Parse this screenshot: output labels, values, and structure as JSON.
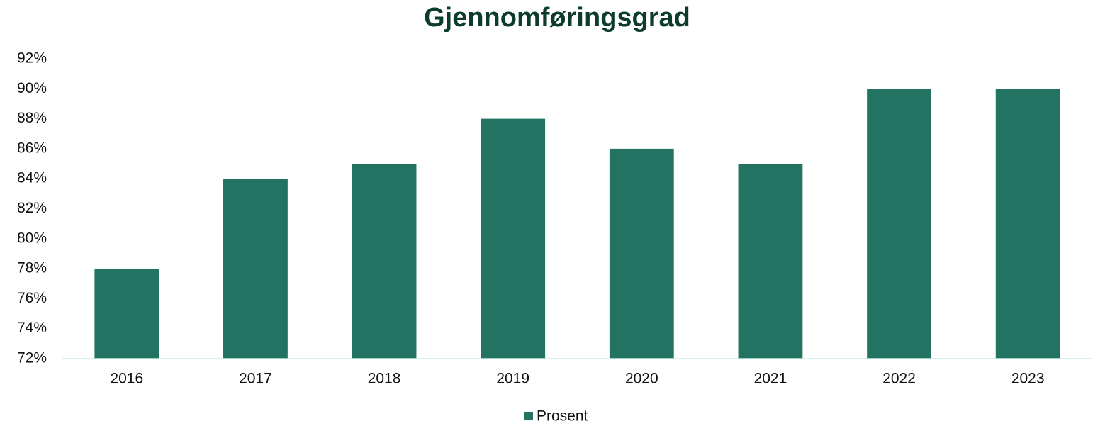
{
  "chart_data": {
    "type": "bar",
    "title": "Gjennomføringsgrad",
    "categories": [
      "2016",
      "2017",
      "2018",
      "2019",
      "2020",
      "2021",
      "2022",
      "2023"
    ],
    "series": [
      {
        "name": "Prosent",
        "color": "#237362",
        "values": [
          78,
          84,
          85,
          88,
          86,
          85,
          90,
          90
        ]
      }
    ],
    "ylim": [
      72,
      92
    ],
    "yticks": [
      {
        "value": 72,
        "label": "72%"
      },
      {
        "value": 74,
        "label": "74%"
      },
      {
        "value": 76,
        "label": "76%"
      },
      {
        "value": 78,
        "label": "78%"
      },
      {
        "value": 80,
        "label": "80%"
      },
      {
        "value": 82,
        "label": "82%"
      },
      {
        "value": 84,
        "label": "84%"
      },
      {
        "value": 86,
        "label": "86%"
      },
      {
        "value": 88,
        "label": "88%"
      },
      {
        "value": 90,
        "label": "90%"
      },
      {
        "value": 92,
        "label": "92%"
      }
    ],
    "grid": false,
    "legend": "bottom"
  }
}
